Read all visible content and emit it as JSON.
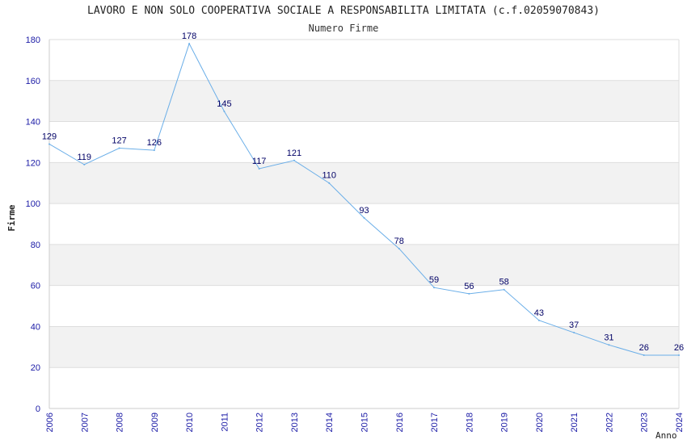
{
  "chart_data": {
    "type": "line",
    "title": "LAVORO E NON SOLO COOPERATIVA SOCIALE A RESPONSABILITA LIMITATA (c.f.02059070843)",
    "subtitle": "Numero Firme",
    "xlabel": "Anno",
    "ylabel": "Firme",
    "x": [
      "2006",
      "2007",
      "2008",
      "2009",
      "2010",
      "2011",
      "2012",
      "2013",
      "2014",
      "2015",
      "2016",
      "2017",
      "2018",
      "2019",
      "2020",
      "2021",
      "2022",
      "2023",
      "2024"
    ],
    "series": [
      {
        "values": [
          129,
          119,
          127,
          126,
          178,
          145,
          117,
          121,
          110,
          93,
          78,
          59,
          56,
          58,
          43,
          37,
          31,
          26,
          26
        ]
      }
    ],
    "ylim": [
      0,
      180
    ],
    "yticks": [
      0,
      20,
      40,
      60,
      80,
      100,
      120,
      140,
      160,
      180
    ],
    "grid": true,
    "colors": {
      "line": "#6aaee8",
      "tick_text": "#1a1aa6",
      "data_label": "#000066",
      "band": "#f2f2f2",
      "gridline": "#dddddd"
    }
  }
}
